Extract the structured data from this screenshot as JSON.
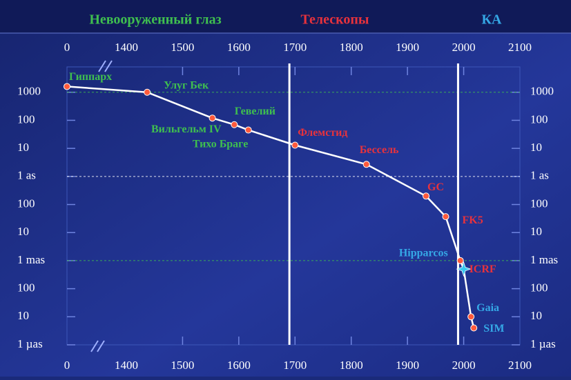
{
  "chart_data": {
    "type": "line",
    "headers": [
      {
        "text": "Невооруженный глаз",
        "color": "#3fbf4f"
      },
      {
        "text": "Телескопы",
        "color": "#e8323c"
      },
      {
        "text": "КА",
        "color": "#35a8e6"
      }
    ],
    "x": [
      0,
      1437,
      1553,
      1592,
      1617,
      1700,
      1827,
      1933,
      1968,
      1994,
      2000,
      2013,
      2018
    ],
    "values": [
      1600,
      1000,
      120,
      70,
      45,
      13,
      2.7,
      0.2,
      0.037,
      0.001,
      0.0005,
      1e-05,
      4e-06
    ],
    "labels": [
      "Гиппарх",
      "Улуг Бек",
      "Вильгельм IV",
      "Тихо Браге",
      "Гевелий",
      "Флемстид",
      "Бессель",
      "GC",
      "FK5",
      "Hipparcos",
      "ICRF",
      "Gaia",
      "SIM"
    ],
    "label_colors": [
      "#3fbf4f",
      "#3fbf4f",
      "#3fbf4f",
      "#3fbf4f",
      "#3fbf4f",
      "#e8323c",
      "#e8323c",
      "#e8323c",
      "#e8323c",
      "#35a8e6",
      "#e8323c",
      "#35a8e6",
      "#35a8e6"
    ],
    "line_color": "#ffffff",
    "marker_color": "#ff5a3c",
    "star_color": "#35c8f0",
    "xticks": [
      0,
      1400,
      1500,
      1600,
      1700,
      1800,
      1900,
      2000,
      2100
    ],
    "xlim": [
      0,
      2100
    ],
    "ylim": [
      1e-06,
      8000
    ],
    "log_y": true,
    "yticks": [
      1000,
      100,
      10,
      {
        "value": 1,
        "label": "1 as"
      },
      {
        "value": 0.1,
        "label": "100"
      },
      {
        "value": 0.01,
        "label": "10"
      },
      {
        "value": 0.001,
        "label": "1 mas"
      },
      {
        "value": 0.0001,
        "label": "100"
      },
      {
        "value": 1e-05,
        "label": "10"
      },
      {
        "value": 1e-06,
        "label": "1 µas"
      }
    ],
    "era_boundaries": [
      1690,
      1990
    ],
    "reference_lines": [
      {
        "value": 1000,
        "color": "#3fbf4f"
      },
      {
        "value": 1,
        "color": "#ffffff"
      },
      {
        "value": 0.001,
        "color": "#3fbf4f"
      }
    ]
  }
}
